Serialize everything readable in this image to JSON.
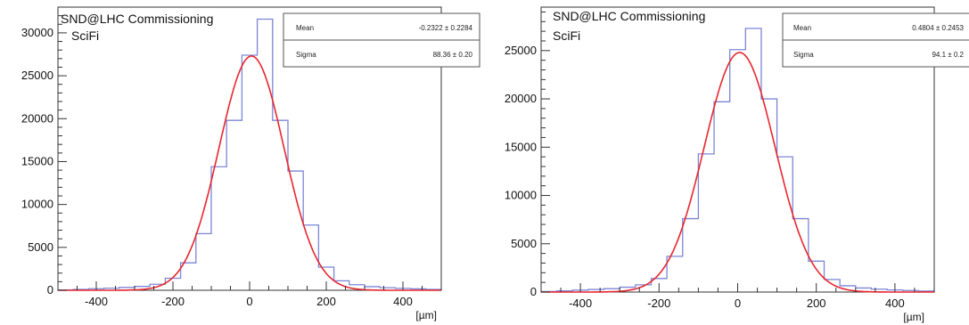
{
  "chart_data": [
    {
      "type": "histogram",
      "title": "SND@LHC Commissioning",
      "subtitle": "SciFi",
      "xlabel": "[µm]",
      "ylabel": "",
      "xlim": [
        -500,
        500
      ],
      "ylim": [
        0,
        33000
      ],
      "x_ticks": [
        -400,
        -200,
        0,
        200,
        400
      ],
      "y_ticks": [
        0,
        5000,
        10000,
        15000,
        20000,
        25000,
        30000
      ],
      "grid": false,
      "bin_width": 40,
      "bins": [
        {
          "x": -500,
          "value": 40
        },
        {
          "x": -460,
          "value": 100
        },
        {
          "x": -420,
          "value": 180
        },
        {
          "x": -380,
          "value": 250
        },
        {
          "x": -340,
          "value": 330
        },
        {
          "x": -300,
          "value": 450
        },
        {
          "x": -260,
          "value": 700
        },
        {
          "x": -220,
          "value": 1400
        },
        {
          "x": -180,
          "value": 3200
        },
        {
          "x": -140,
          "value": 6600
        },
        {
          "x": -100,
          "value": 14400
        },
        {
          "x": -60,
          "value": 19800
        },
        {
          "x": -20,
          "value": 27400
        },
        {
          "x": 20,
          "value": 31600
        },
        {
          "x": 60,
          "value": 19800
        },
        {
          "x": 100,
          "value": 13900
        },
        {
          "x": 140,
          "value": 7600
        },
        {
          "x": 180,
          "value": 2700
        },
        {
          "x": 220,
          "value": 1100
        },
        {
          "x": 260,
          "value": 650
        },
        {
          "x": 300,
          "value": 420
        },
        {
          "x": 340,
          "value": 300
        },
        {
          "x": 380,
          "value": 220
        },
        {
          "x": 420,
          "value": 160
        },
        {
          "x": 460,
          "value": 100
        }
      ],
      "fit": {
        "type": "gaussian",
        "amplitude": 27300,
        "mean": 5,
        "sigma": 85,
        "color": "#e8262d"
      },
      "histogram_color": "#7c86d6",
      "stats_box": [
        {
          "label": "Mean",
          "value": "-0.2322 ± 0.2284"
        },
        {
          "label": "Sigma",
          "value": "88.36 ± 0.20"
        }
      ]
    },
    {
      "type": "histogram",
      "title": "SND@LHC Commissioning",
      "subtitle": "SciFi",
      "xlabel": "[µm]",
      "ylabel": "",
      "xlim": [
        -500,
        500
      ],
      "ylim": [
        0,
        29500
      ],
      "x_ticks": [
        -400,
        -200,
        0,
        200,
        400
      ],
      "y_ticks": [
        0,
        5000,
        10000,
        15000,
        20000,
        25000
      ],
      "grid": false,
      "bin_width": 40,
      "bins": [
        {
          "x": -500,
          "value": 50
        },
        {
          "x": -460,
          "value": 120
        },
        {
          "x": -420,
          "value": 200
        },
        {
          "x": -380,
          "value": 270
        },
        {
          "x": -340,
          "value": 350
        },
        {
          "x": -300,
          "value": 500
        },
        {
          "x": -260,
          "value": 750
        },
        {
          "x": -220,
          "value": 1400
        },
        {
          "x": -180,
          "value": 3700
        },
        {
          "x": -140,
          "value": 7600
        },
        {
          "x": -100,
          "value": 14300
        },
        {
          "x": -60,
          "value": 19700
        },
        {
          "x": -20,
          "value": 25100
        },
        {
          "x": 20,
          "value": 27300
        },
        {
          "x": 60,
          "value": 20000
        },
        {
          "x": 100,
          "value": 14000
        },
        {
          "x": 140,
          "value": 7600
        },
        {
          "x": 180,
          "value": 3200
        },
        {
          "x": 220,
          "value": 1300
        },
        {
          "x": 260,
          "value": 650
        },
        {
          "x": 300,
          "value": 420
        },
        {
          "x": 340,
          "value": 300
        },
        {
          "x": 380,
          "value": 220
        },
        {
          "x": 420,
          "value": 160
        },
        {
          "x": 460,
          "value": 100
        }
      ],
      "fit": {
        "type": "gaussian",
        "amplitude": 24800,
        "mean": 5,
        "sigma": 90,
        "color": "#e8262d"
      },
      "histogram_color": "#7c86d6",
      "stats_box": [
        {
          "label": "Mean",
          "value": "0.4804 ± 0.2453"
        },
        {
          "label": "Sigma",
          "value": "94.1 ± 0.2"
        }
      ]
    }
  ]
}
